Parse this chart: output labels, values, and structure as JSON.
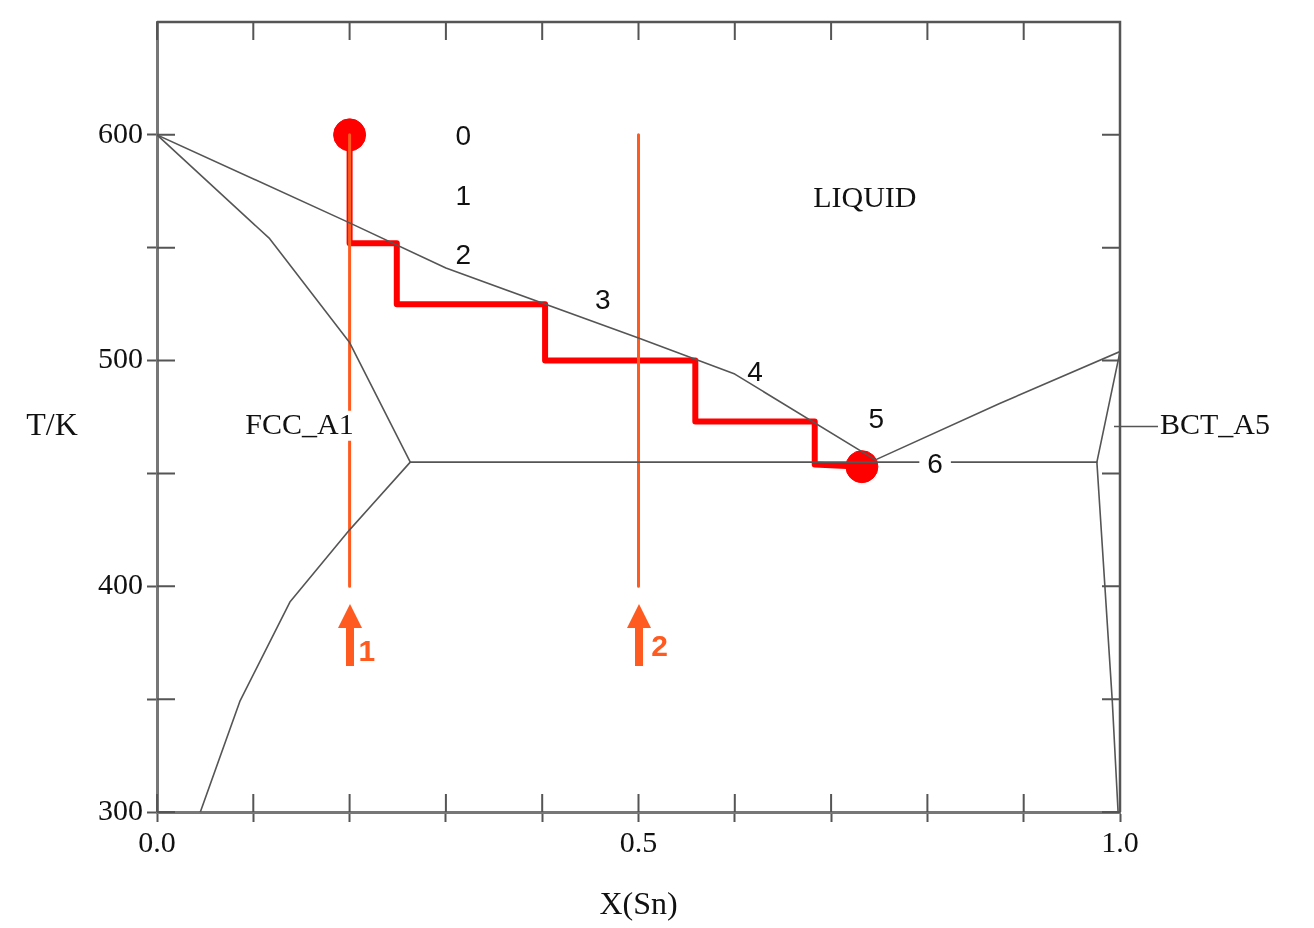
{
  "chart_data": {
    "type": "line",
    "xlabel": "X(Sn)",
    "ylabel": "T/K",
    "xlim": [
      0,
      1
    ],
    "ylim": [
      300,
      650
    ],
    "xticks": [
      {
        "value": 0,
        "label": "0.0"
      },
      {
        "value": 0.1,
        "label": null
      },
      {
        "value": 0.2,
        "label": null
      },
      {
        "value": 0.3,
        "label": null
      },
      {
        "value": 0.4,
        "label": null
      },
      {
        "value": 0.5,
        "label": "0.5"
      },
      {
        "value": 0.6,
        "label": null
      },
      {
        "value": 0.7,
        "label": null
      },
      {
        "value": 0.8,
        "label": null
      },
      {
        "value": 0.9,
        "label": null
      },
      {
        "value": 1,
        "label": "1.0"
      }
    ],
    "yticks": [
      300,
      {
        "value": 350,
        "label": null
      },
      400,
      {
        "value": 450,
        "label": null
      },
      500,
      {
        "value": 550,
        "label": null
      },
      600
    ],
    "grid": false,
    "legend": false,
    "marker": "none",
    "line_style": "solid",
    "series": [
      {
        "color": "#555555",
        "x": [
          0,
          0.2,
          0.3,
          0.5,
          0.6,
          0.746
        ],
        "values": [
          600,
          561,
          541,
          510,
          494,
          456
        ]
      },
      {
        "color": "#555555",
        "x": [
          0,
          0.117,
          0.2,
          0.263,
          0.2,
          0.138,
          0.086,
          0.045
        ],
        "values": [
          600,
          554,
          508,
          455,
          425,
          393,
          349,
          300
        ]
      },
      {
        "color": "#555555",
        "x": [
          0.263,
          0.976
        ],
        "values": [
          455,
          455
        ]
      },
      {
        "color": "#555555",
        "x": [
          0.746,
          0.875,
          1
        ],
        "values": [
          456,
          481,
          504
        ]
      },
      {
        "color": "#555555",
        "x": [
          1,
          0.976,
          0.992,
          0.998
        ],
        "values": [
          504,
          455,
          349,
          300
        ]
      },
      {
        "color": "#ff5a1f",
        "x": [
          0.2,
          0.2
        ],
        "values": [
          600,
          400
        ]
      },
      {
        "color": "#ff5a1f",
        "x": [
          0.5,
          0.5
        ],
        "values": [
          600,
          400
        ]
      },
      {
        "color": "#ff0000",
        "x": [
          0.2,
          0.2,
          0.249,
          0.249,
          0.403,
          0.403,
          0.559,
          0.559,
          0.683,
          0.683,
          0.732
        ],
        "values": [
          600,
          552,
          552,
          525,
          525,
          500,
          500,
          473,
          473,
          454,
          453
        ]
      },
      {
        "type": "scatter",
        "color": "#ff0000",
        "marker": "circle",
        "x": [
          0.2,
          0.732
        ],
        "values": [
          600,
          453
        ]
      }
    ],
    "annotations": [
      "0",
      "1",
      "2",
      "3",
      "4",
      "5",
      "6",
      "LIQUID",
      "FCC_A1",
      "BCT_A5",
      "1",
      "2"
    ]
  }
}
